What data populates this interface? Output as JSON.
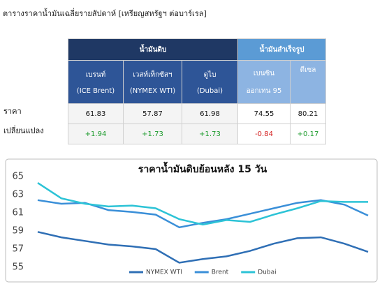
{
  "heading": "ตารางราคาน้ำมันเฉลี่ยรายสัปดาห์ [เหรียญสหรัฐฯ ต่อบาร์เรล]",
  "table": {
    "groups": [
      "น้ำมันดิบ",
      "น้ำมันสำเร็จรูป"
    ],
    "columns": [
      [
        "เบรนท์",
        "(ICE Brent)"
      ],
      [
        "เวสท์เท็กซัสฯ",
        "(NYMEX WTI)"
      ],
      [
        "ดูไบ",
        "(Dubai)"
      ],
      [
        "เบนซิน",
        "ออกเทน 95"
      ],
      [
        "ดีเซล"
      ]
    ],
    "rows": [
      {
        "label": "ราคา",
        "cells": [
          "61.83",
          "57.87",
          "61.98",
          "74.55",
          "80.21"
        ]
      },
      {
        "label": "เปลี่ยนแปลง",
        "cells": [
          "+1.94",
          "+1.73",
          "+1.73",
          "-0.84",
          "+0.17"
        ]
      }
    ]
  },
  "chart_data": {
    "type": "line",
    "title": "ราคาน้ำมันดิบย้อนหลัง 15 วัน",
    "categories": [
      null,
      null,
      null,
      null,
      null,
      null,
      null,
      null,
      null,
      null,
      null,
      null,
      null,
      null,
      null
    ],
    "series": [
      {
        "name": "NYMEX WTI",
        "color": "#2f6fb5",
        "values": [
          58.9,
          58.3,
          57.9,
          57.5,
          57.3,
          57.0,
          55.5,
          55.9,
          56.2,
          56.8,
          57.6,
          58.2,
          58.3,
          57.6,
          56.7
        ]
      },
      {
        "name": "Brent",
        "color": "#3a8fd8",
        "values": [
          62.4,
          62.0,
          62.1,
          61.3,
          61.1,
          60.8,
          59.4,
          59.9,
          60.3,
          60.9,
          61.5,
          62.1,
          62.4,
          61.9,
          60.7
        ]
      },
      {
        "name": "Dubai",
        "color": "#2cc3d6",
        "values": [
          64.3,
          62.6,
          62.0,
          61.7,
          61.8,
          61.5,
          60.3,
          59.7,
          60.2,
          60.0,
          60.8,
          61.5,
          62.3,
          62.2,
          62.2
        ]
      }
    ],
    "ylim": [
      55,
      65
    ],
    "yticks": [
      55,
      57,
      59,
      61,
      63,
      65
    ],
    "grid": false,
    "legend": "bottom"
  }
}
